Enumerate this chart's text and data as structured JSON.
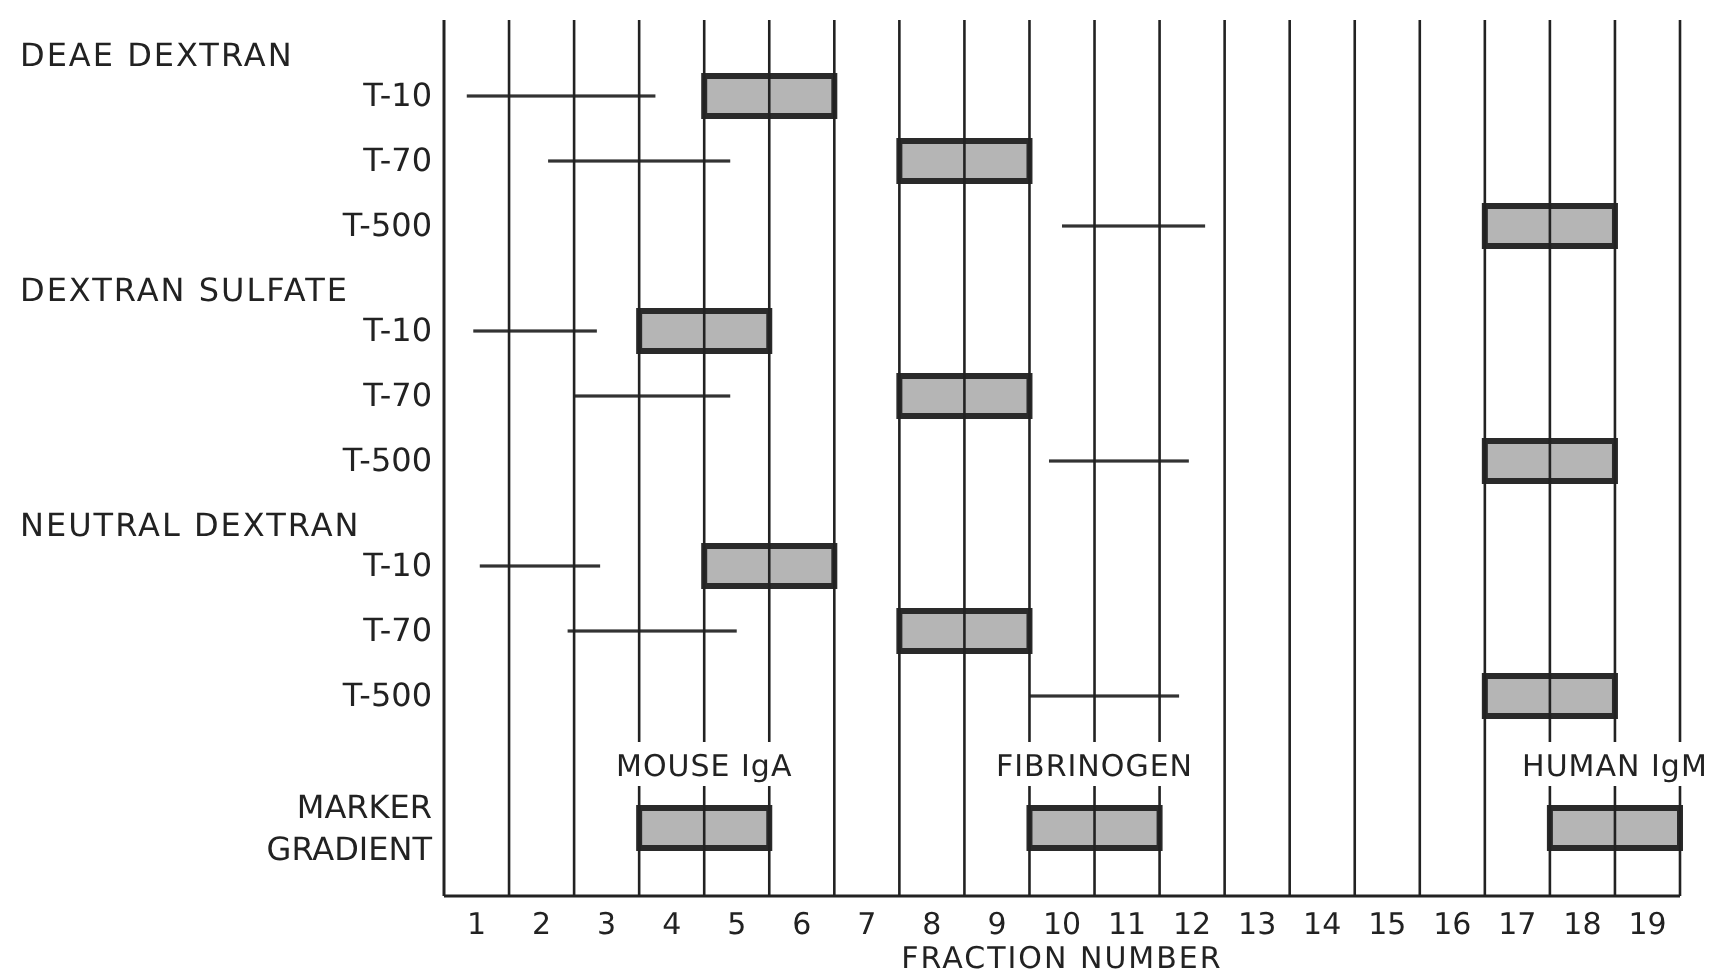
{
  "chart_data": {
    "type": "bar",
    "orientation": "horizontal",
    "xlabel": "FRACTION NUMBER",
    "annotations": [
      "DEAE DEXTRAN",
      "DEXTRAN SULFATE",
      "NEUTRAL DEXTRAN"
    ],
    "categories": [
      "T-10",
      "T-70",
      "T-500",
      "T-10",
      "T-70",
      "T-500",
      "T-10",
      "T-70",
      "T-500",
      "MARKER GRADIENT"
    ],
    "xlim": [
      0.5,
      19.5
    ],
    "xticks": [
      1,
      {
        "value": 1.5,
        "label": null
      },
      2,
      {
        "value": 2.5,
        "label": null
      },
      3,
      {
        "value": 3.5,
        "label": null
      },
      4,
      {
        "value": 4.5,
        "label": null
      },
      5,
      {
        "value": 5.5,
        "label": null
      },
      6,
      {
        "value": 6.5,
        "label": null
      },
      7,
      {
        "value": 7.5,
        "label": null
      },
      8,
      {
        "value": 8.5,
        "label": null
      },
      9,
      {
        "value": 9.5,
        "label": null
      },
      10,
      {
        "value": 10.5,
        "label": null
      },
      11,
      {
        "value": 11.5,
        "label": null
      },
      12,
      {
        "value": 12.5,
        "label": null
      },
      13,
      {
        "value": 13.5,
        "label": null
      },
      14,
      {
        "value": 14.5,
        "label": null
      },
      15,
      {
        "value": 15.5,
        "label": null
      },
      16,
      {
        "value": 16.5,
        "label": null
      },
      17,
      {
        "value": 17.5,
        "label": null
      },
      18,
      {
        "value": 18.5,
        "label": null
      },
      19,
      {
        "value": 19.5,
        "label": null
      }
    ],
    "grid": "x",
    "legend": false,
    "series": [
      {
        "line_style": "solid",
        "color": "#333333",
        "base": [
          0.85,
          2.1,
          10,
          0.95,
          2.5,
          9.8,
          1.05,
          2.4,
          9.5,
          null
        ],
        "values": [
          2.9,
          2.8,
          2.2,
          1.9,
          2.4,
          2.15,
          1.85,
          2.6,
          2.3,
          null
        ]
      },
      {
        "color": "#b5b5b5",
        "base": [
          4.5,
          7.5,
          16.5,
          3.5,
          7.5,
          16.5,
          4.5,
          7.5,
          16.5,
          null
        ],
        "values": [
          2,
          2,
          2,
          2,
          2,
          2,
          2,
          2,
          2,
          null
        ]
      },
      {
        "name": "MOUSE IgA",
        "color": "#b5b5b5",
        "base": [
          null,
          null,
          null,
          null,
          null,
          null,
          null,
          null,
          null,
          3.5
        ],
        "values": [
          null,
          null,
          null,
          null,
          null,
          null,
          null,
          null,
          null,
          2
        ]
      },
      {
        "name": "FIBRINOGEN",
        "color": "#b5b5b5",
        "base": [
          null,
          null,
          null,
          null,
          null,
          null,
          null,
          null,
          null,
          9.5
        ],
        "values": [
          null,
          null,
          null,
          null,
          null,
          null,
          null,
          null,
          null,
          2
        ]
      },
      {
        "name": "HUMAN IgM",
        "color": "#b5b5b5",
        "base": [
          null,
          null,
          null,
          null,
          null,
          null,
          null,
          null,
          null,
          17.5
        ],
        "values": [
          null,
          null,
          null,
          null,
          null,
          null,
          null,
          null,
          null,
          2
        ]
      }
    ]
  }
}
